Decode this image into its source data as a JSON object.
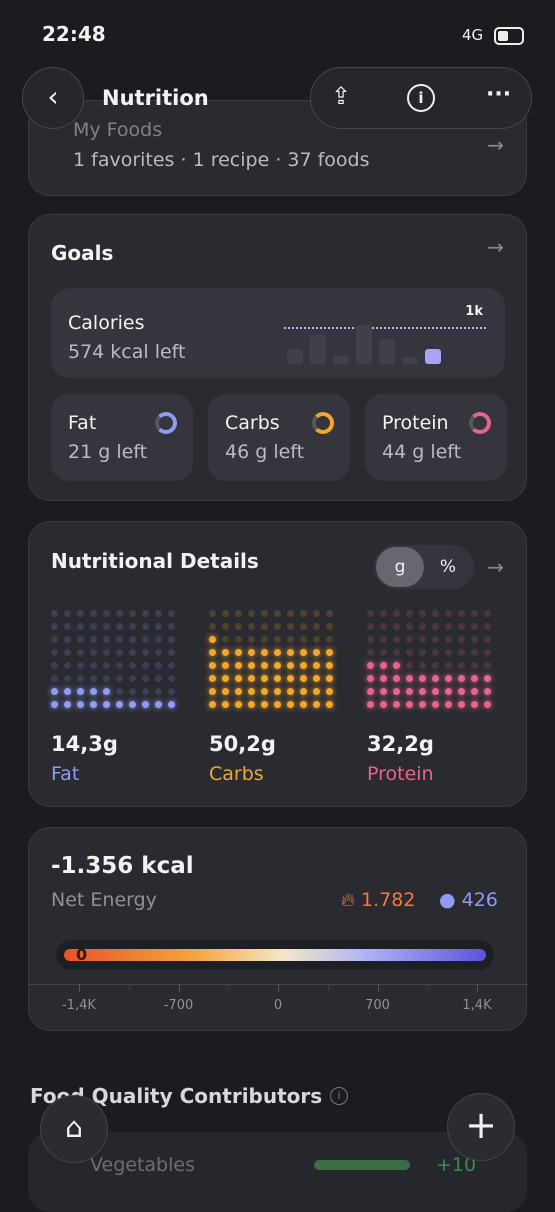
{
  "status": {
    "time": "22:48",
    "network": "4G"
  },
  "header": {
    "title": "Nutrition"
  },
  "my_foods": {
    "title": "My Foods",
    "favorites": "1 favorites",
    "recipes": "1 recipe",
    "foods": "37 foods"
  },
  "goals": {
    "title": "Goals",
    "calories": {
      "label": "Calories",
      "remaining": "574 kcal left",
      "chart_max_label": "1k"
    },
    "macros": [
      {
        "name": "Fat",
        "remaining": "21 g left"
      },
      {
        "name": "Carbs",
        "remaining": "46 g left"
      },
      {
        "name": "Protein",
        "remaining": "44 g left"
      }
    ]
  },
  "nutritional_details": {
    "title": "Nutritional Details",
    "unit_options": [
      "g",
      "%"
    ],
    "selected_unit": "g",
    "macros": {
      "names": [
        "Fat",
        "Carbs",
        "Protein"
      ],
      "values": [
        14.3,
        50.2,
        32.2
      ],
      "value_labels": [
        "14,3g",
        "50,2g",
        "32,2g"
      ],
      "colors": [
        "#8e9cf6",
        "#f4a72b",
        "#e8638d"
      ]
    }
  },
  "net_energy": {
    "value": "-1.356 kcal",
    "label": "Net Energy",
    "burned": "1.782",
    "consumed": "426",
    "marker": "0",
    "scale": [
      "-1,4K",
      "-700",
      "0",
      "700",
      "1,4K"
    ]
  },
  "food_quality": {
    "title": "Food Quality Contributors",
    "items": [
      {
        "name": "Vegetables",
        "score": "+10"
      }
    ]
  }
}
